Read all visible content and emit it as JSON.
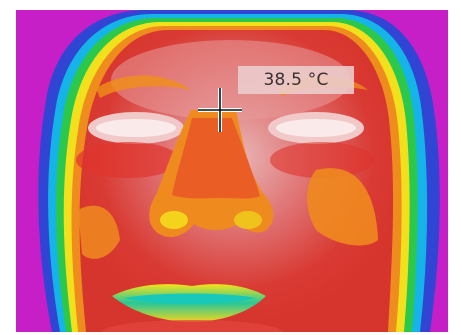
{
  "measurement": {
    "spot_temperature": "38.5 °C"
  },
  "image": {
    "palette_colors": [
      "#cc22cc",
      "#2f3fd0",
      "#12b8e6",
      "#26c84a",
      "#f2e21a",
      "#f08a1a",
      "#e0302a",
      "#d96a6a",
      "#f3d6d6"
    ],
    "content": "thermal-face"
  },
  "overlay": {
    "crosshair": "crosshair-icon"
  }
}
